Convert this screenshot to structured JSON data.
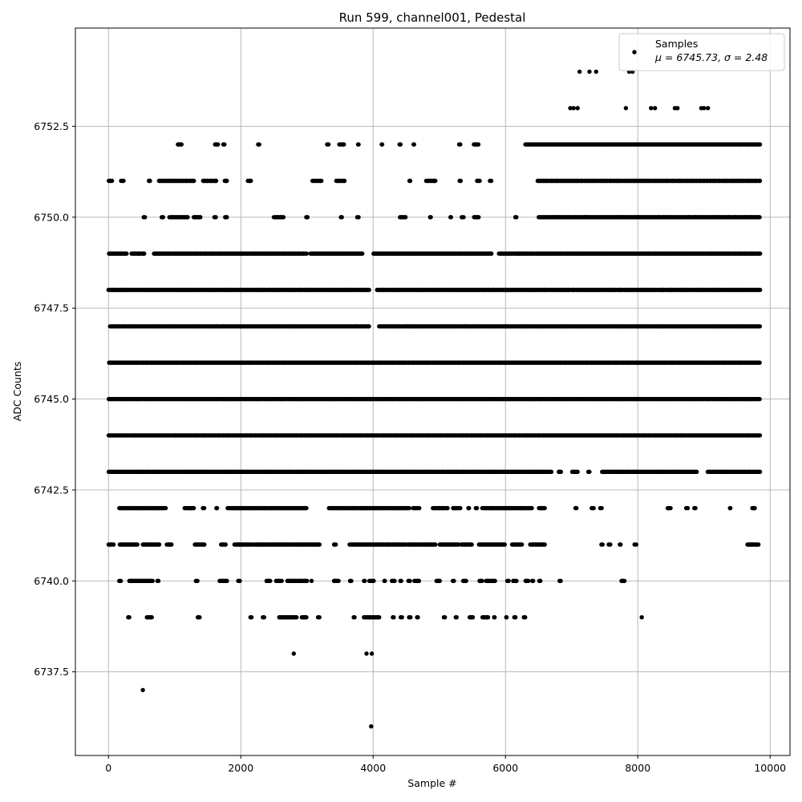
{
  "chart_data": {
    "type": "scatter",
    "title": "Run 599, channel001, Pedestal",
    "xlabel": "Sample #",
    "ylabel": "ADC Counts",
    "xlim": [
      -500,
      10300
    ],
    "ylim": [
      6735.2,
      6755.2
    ],
    "x_ticks": [
      0,
      2000,
      4000,
      6000,
      8000,
      10000
    ],
    "x_tick_labels": [
      "0",
      "2000",
      "4000",
      "6000",
      "8000",
      "10000"
    ],
    "y_ticks": [
      6737.5,
      6740.0,
      6742.5,
      6745.0,
      6747.5,
      6750.0,
      6752.5
    ],
    "y_tick_labels": [
      "6737.5",
      "6740.0",
      "6742.5",
      "6745.0",
      "6747.5",
      "6750.0",
      "6752.5"
    ],
    "grid": true,
    "legend": {
      "placement": "top-right",
      "entries": [
        {
          "label": "Samples",
          "stats": "μ = 6745.73, σ = 2.48"
        }
      ]
    },
    "series": [
      {
        "name": "Samples",
        "color": "#000000",
        "marker": "dot",
        "n_samples": 9850,
        "points": [
          {
            "x": 520,
            "y": 6737
          },
          {
            "x": 3970,
            "y": 6736
          },
          {
            "x": 2800,
            "y": 6738
          },
          {
            "x": 3900,
            "y": 6738
          },
          {
            "x": 3980,
            "y": 6738
          },
          {
            "x": 8060,
            "y": 6739
          },
          {
            "x": 7120,
            "y": 6754
          },
          {
            "x": 7270,
            "y": 6754
          },
          {
            "x": 7370,
            "y": 6754
          },
          {
            "x": 7870,
            "y": 6754
          },
          {
            "x": 7920,
            "y": 6754
          },
          {
            "x": 6980,
            "y": 6753
          },
          {
            "x": 7030,
            "y": 6753
          },
          {
            "x": 7090,
            "y": 6753
          },
          {
            "x": 7820,
            "y": 6753
          },
          {
            "x": 8200,
            "y": 6753
          },
          {
            "x": 8260,
            "y": 6753
          },
          {
            "x": 8560,
            "y": 6753
          },
          {
            "x": 8600,
            "y": 6753
          },
          {
            "x": 8960,
            "y": 6753
          },
          {
            "x": 9000,
            "y": 6753
          },
          {
            "x": 9060,
            "y": 6753
          }
        ],
        "level_segments": [
          {
            "y": 6752,
            "ranges": [
              [
                1040,
                1110
              ],
              [
                1610,
                1660
              ],
              [
                1730,
                1760
              ],
              [
                2260,
                2290
              ],
              [
                3300,
                3330
              ],
              [
                3480,
                3570
              ],
              [
                3760,
                3790
              ],
              [
                4120,
                4150
              ],
              [
                4390,
                4420
              ],
              [
                4600,
                4630
              ],
              [
                5290,
                5320
              ],
              [
                5520,
                5600
              ],
              [
                6300,
                9850
              ]
            ]
          },
          {
            "y": 6751,
            "ranges": [
              [
                0,
                60
              ],
              [
                190,
                230
              ],
              [
                600,
                640
              ],
              [
                760,
                1300
              ],
              [
                1420,
                1640
              ],
              [
                1750,
                1800
              ],
              [
                2100,
                2160
              ],
              [
                3080,
                3220
              ],
              [
                3440,
                3580
              ],
              [
                4540,
                4570
              ],
              [
                4800,
                4950
              ],
              [
                5300,
                5330
              ],
              [
                5560,
                5620
              ],
              [
                5760,
                5790
              ],
              [
                6480,
                9850
              ]
            ]
          },
          {
            "y": 6750,
            "ranges": [
              [
                530,
                560
              ],
              [
                800,
                830
              ],
              [
                920,
                1200
              ],
              [
                1280,
                1400
              ],
              [
                1600,
                1630
              ],
              [
                1760,
                1800
              ],
              [
                2500,
                2650
              ],
              [
                2980,
                3010
              ],
              [
                3500,
                3530
              ],
              [
                3760,
                3790
              ],
              [
                4400,
                4500
              ],
              [
                4850,
                4880
              ],
              [
                5160,
                5190
              ],
              [
                5340,
                5370
              ],
              [
                5520,
                5600
              ],
              [
                6140,
                6170
              ],
              [
                6500,
                9850
              ]
            ]
          },
          {
            "y": 6749,
            "ranges": [
              [
                0,
                280
              ],
              [
                350,
                550
              ],
              [
                680,
                3000
              ],
              [
                3050,
                3840
              ],
              [
                4000,
                5800
              ],
              [
                5900,
                9850
              ]
            ]
          },
          {
            "y": 6748,
            "ranges": [
              [
                0,
                3950
              ],
              [
                4050,
                9850
              ]
            ]
          },
          {
            "y": 6747,
            "ranges": [
              [
                20,
                3950
              ],
              [
                4080,
                9850
              ]
            ]
          },
          {
            "y": 6746,
            "ranges": [
              [
                0,
                9850
              ]
            ]
          },
          {
            "y": 6745,
            "ranges": [
              [
                0,
                9850
              ]
            ]
          },
          {
            "y": 6744,
            "ranges": [
              [
                0,
                9850
              ]
            ]
          },
          {
            "y": 6743,
            "ranges": [
              [
                0,
                6700
              ],
              [
                6800,
                6850
              ],
              [
                7000,
                7100
              ],
              [
                7250,
                7280
              ],
              [
                7450,
                8900
              ],
              [
                9050,
                9850
              ]
            ]
          },
          {
            "y": 6742,
            "ranges": [
              [
                160,
                870
              ],
              [
                1150,
                1300
              ],
              [
                1420,
                1450
              ],
              [
                1620,
                1650
              ],
              [
                1800,
                3000
              ],
              [
                3330,
                4550
              ],
              [
                4600,
                4700
              ],
              [
                4900,
                5130
              ],
              [
                5200,
                5320
              ],
              [
                5430,
                5460
              ],
              [
                5550,
                5580
              ],
              [
                5650,
                6400
              ],
              [
                6500,
                6600
              ],
              [
                7050,
                7080
              ],
              [
                7300,
                7340
              ],
              [
                7430,
                7460
              ],
              [
                8450,
                8500
              ],
              [
                8730,
                8760
              ],
              [
                8850,
                8880
              ],
              [
                9380,
                9410
              ],
              [
                9730,
                9780
              ]
            ]
          },
          {
            "y": 6741,
            "ranges": [
              [
                0,
                80
              ],
              [
                160,
                440
              ],
              [
                520,
                780
              ],
              [
                880,
                960
              ],
              [
                1300,
                1460
              ],
              [
                1700,
                1780
              ],
              [
                1900,
                2180
              ],
              [
                2200,
                3200
              ],
              [
                3400,
                3440
              ],
              [
                3640,
                4500
              ],
              [
                4520,
                4950
              ],
              [
                5000,
                5300
              ],
              [
                5330,
                5500
              ],
              [
                5600,
                6000
              ],
              [
                6100,
                6250
              ],
              [
                6370,
                6600
              ],
              [
                7450,
                7480
              ],
              [
                7560,
                7590
              ],
              [
                7720,
                7750
              ],
              [
                7950,
                7980
              ],
              [
                9650,
                9830
              ]
            ]
          },
          {
            "y": 6740,
            "ranges": [
              [
                160,
                190
              ],
              [
                310,
                670
              ],
              [
                730,
                760
              ],
              [
                1320,
                1350
              ],
              [
                1680,
                1800
              ],
              [
                1960,
                1990
              ],
              [
                2380,
                2450
              ],
              [
                2530,
                2620
              ],
              [
                2700,
                3010
              ],
              [
                3060,
                3080
              ],
              [
                3400,
                3480
              ],
              [
                3650,
                3680
              ],
              [
                3850,
                3880
              ],
              [
                3940,
                4020
              ],
              [
                4160,
                4190
              ],
              [
                4280,
                4330
              ],
              [
                4400,
                4430
              ],
              [
                4530,
                4560
              ],
              [
                4620,
                4700
              ],
              [
                4950,
                5020
              ],
              [
                5200,
                5230
              ],
              [
                5350,
                5410
              ],
              [
                5600,
                5650
              ],
              [
                5700,
                5850
              ],
              [
                6020,
                6050
              ],
              [
                6110,
                6170
              ],
              [
                6300,
                6350
              ],
              [
                6400,
                6430
              ],
              [
                6500,
                6530
              ],
              [
                6810,
                6840
              ],
              [
                7750,
                7810
              ]
            ]
          },
          {
            "y": 6739,
            "ranges": [
              [
                290,
                320
              ],
              [
                580,
                660
              ],
              [
                1340,
                1380
              ],
              [
                2140,
                2170
              ],
              [
                2330,
                2360
              ],
              [
                2570,
                2850
              ],
              [
                2920,
                3000
              ],
              [
                3160,
                3190
              ],
              [
                3700,
                3730
              ],
              [
                3860,
                4100
              ],
              [
                4290,
                4320
              ],
              [
                4410,
                4440
              ],
              [
                4540,
                4570
              ],
              [
                4660,
                4690
              ],
              [
                5060,
                5090
              ],
              [
                5240,
                5270
              ],
              [
                5450,
                5520
              ],
              [
                5650,
                5750
              ],
              [
                5820,
                5850
              ],
              [
                6000,
                6030
              ],
              [
                6130,
                6160
              ],
              [
                6270,
                6300
              ]
            ]
          }
        ]
      }
    ]
  }
}
